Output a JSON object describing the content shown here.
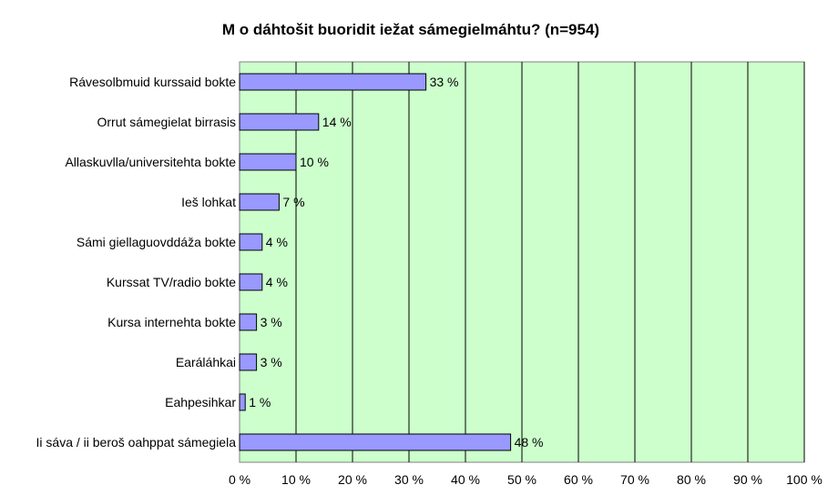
{
  "chart_data": {
    "type": "bar",
    "orientation": "horizontal",
    "title": "M o dáhtošit buoridit iežat sámegielmáhtu? (n=954)",
    "categories": [
      "Rávesolbmuid kurssaid  bokte",
      "Orrut sámegielat birrasis",
      "Allaskuvlla/universitehta bokte",
      "Ieš lohkat",
      "Sámi giellaguovddáža bokte",
      "Kurssat TV/radio bokte",
      "Kursa internehta bokte",
      "Earáláhkai",
      "Eahpesihkar",
      "Ii sáva / ii beroš oahppat sámegiela"
    ],
    "values": [
      33,
      14,
      10,
      7,
      4,
      4,
      3,
      3,
      1,
      48
    ],
    "value_labels": [
      "33 %",
      "14 %",
      "10 %",
      "7 %",
      "4 %",
      "4 %",
      "3 %",
      "3 %",
      "1 %",
      "48 %"
    ],
    "xlim": [
      0,
      100
    ],
    "xticks": [
      "0 %",
      "10 %",
      "20 %",
      "30 %",
      "40 %",
      "50 %",
      "60 %",
      "70 %",
      "80 %",
      "90 %",
      "100 %"
    ],
    "grid": true,
    "colors": {
      "bar": "#9999ff",
      "plot_bg": "#ccffcc",
      "grid": "#000000"
    }
  }
}
